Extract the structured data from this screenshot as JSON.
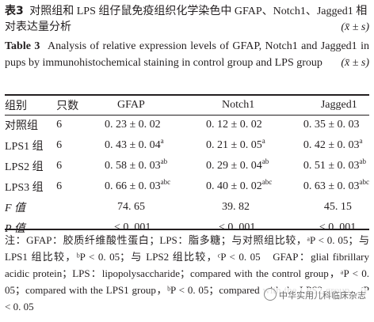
{
  "caption_zh": {
    "label": "表3",
    "text": "对照组和 LPS 组仔鼠免疫组织化学染色中 GFAP、Notch1、Jagged1 相对表达量分析",
    "stat": "(x̄ ± s)"
  },
  "caption_en": {
    "label": "Table 3",
    "text": "Analysis of relative expression levels of GFAP, Notch1 and Jagged1 in pups by immunohistochemical staining in control group and LPS group",
    "stat": "(x̄ ± s)"
  },
  "table": {
    "headers": [
      "组别",
      "只数",
      "GFAP",
      "Notch1",
      "Jagged1"
    ],
    "rows": [
      {
        "group": "对照组",
        "n": "6",
        "gfap": "0. 23 ± 0. 02",
        "gfap_sup": "",
        "notch1": "0. 12 ± 0. 02",
        "notch1_sup": "",
        "jagged1": "0. 35 ± 0. 03",
        "jagged1_sup": ""
      },
      {
        "group": "LPS1 组",
        "n": "6",
        "gfap": "0. 43 ± 0. 04",
        "gfap_sup": "a",
        "notch1": "0. 21 ± 0. 05",
        "notch1_sup": "a",
        "jagged1": "0. 42 ± 0. 03",
        "jagged1_sup": "a"
      },
      {
        "group": "LPS2 组",
        "n": "6",
        "gfap": "0. 58 ± 0. 03",
        "gfap_sup": "ab",
        "notch1": "0. 29 ± 0. 04",
        "notch1_sup": "ab",
        "jagged1": "0. 51 ± 0. 03",
        "jagged1_sup": "ab"
      },
      {
        "group": "LPS3 组",
        "n": "6",
        "gfap": "0. 66 ± 0. 03",
        "gfap_sup": "abc",
        "notch1": "0. 40 ± 0. 02",
        "notch1_sup": "abc",
        "jagged1": "0. 63 ± 0. 03",
        "jagged1_sup": "abc"
      }
    ],
    "f_row": {
      "label": "F 值",
      "gfap": "74. 65",
      "notch1": "39. 82",
      "jagged1": "45. 15"
    },
    "p_row": {
      "label": "P 值",
      "gfap": "< 0. 001",
      "notch1": "< 0. 001",
      "jagged1": "< 0. 001"
    }
  },
  "note": "注：GFAP：胶质纤维酸性蛋白；LPS：脂多糖；与对照组比较，ᵃP < 0. 05；与 LPS1 组比较，ᵇP < 0. 05；与 LPS2 组比较，ᶜP < 0. 05　GFAP：glial fibrillary acidic protein；LPS：lipopolysaccharide；compared with the control group，ᵃP < 0. 05；compared with the LPS1 group，ᵇP < 0. 05；compared with the LPS2 group，ᶜP < 0. 05",
  "watermark": "中华实用儿科临床杂志"
}
